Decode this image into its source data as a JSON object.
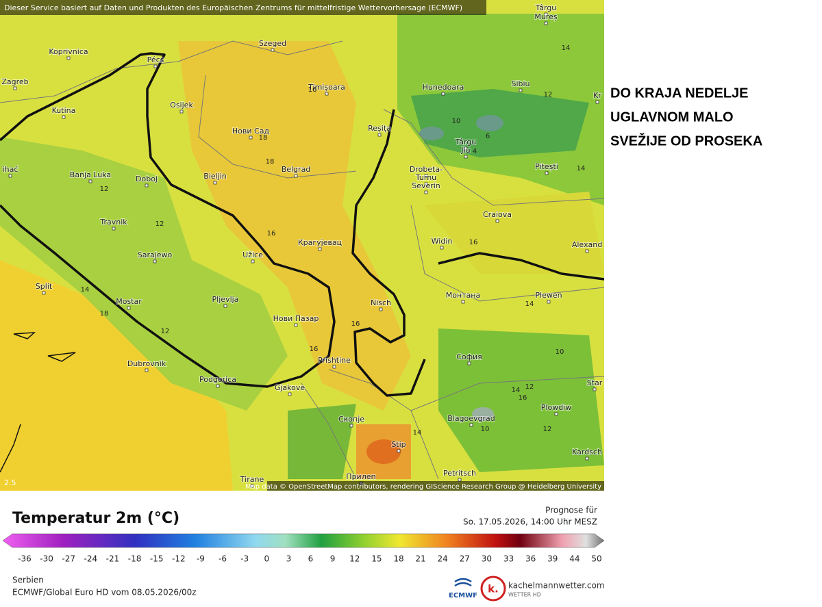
{
  "header": {
    "service_note": "Dieser Service basiert auf Daten und Produkten des Europäischen Zentrums für mittelfristige Wettervorhersage (ECMWF)",
    "attribution": "Map data © OpenStreetMap contributors, rendering GIScience Research Group @ Heidelberg University",
    "zoom_label": "2.5"
  },
  "annotation": {
    "lines": [
      "DO KRAJA NEDELJE",
      "UGLAVNOM MALO",
      "SVEŽIJE OD PROSEKA"
    ]
  },
  "map": {
    "cities": [
      "Târgu",
      "Mureș",
      "Koprivnica",
      "Szeged",
      "Pécs",
      "Zagreb",
      "Osijek",
      "Timișoara",
      "Hunedoara",
      "Sibiu",
      "Kr",
      "Kutina",
      "Нови Сад",
      "Reșița",
      "Târgu",
      "Jiu",
      "ihać",
      "Pitești",
      "Banja Luka",
      "Doboj",
      "Bieljin",
      "Belgrad",
      "Drobeta-",
      "Turnu",
      "Severin",
      "Craiova",
      "Travnik",
      "Sarajewo",
      "Užice",
      "Крагујевац",
      "Widin",
      "Alexand",
      "Split",
      "Mostar",
      "Pljevlja",
      "Nisch",
      "Монтана",
      "Plewen",
      "Нови Пазар",
      "Prishtine",
      "София",
      "Dubrovnik",
      "Podgorica",
      "Gjakove",
      "Star",
      "Скопје",
      "Blagoevgrad",
      "Plowdiw",
      "Stip",
      "Kardsch",
      "Tirane",
      "Прилеп",
      "Petritsch"
    ],
    "contour_labels": [
      14,
      16,
      12,
      10,
      18,
      6,
      4,
      18,
      14,
      12,
      12,
      16,
      16,
      14,
      14,
      18,
      16,
      12,
      16,
      10,
      12,
      14,
      16,
      14,
      10,
      12
    ]
  },
  "legend": {
    "title": "Temperatur 2m (°C)",
    "forecast_label": "Prognose für",
    "forecast_time": "So. 17.05.2026, 14:00 Uhr MESZ",
    "ticks": [
      -36,
      -30,
      -27,
      -24,
      -21,
      -18,
      -15,
      -12,
      -9,
      -6,
      -3,
      0,
      3,
      6,
      9,
      12,
      15,
      18,
      21,
      24,
      27,
      30,
      33,
      36,
      39,
      44,
      50
    ]
  },
  "footer": {
    "region": "Serbien",
    "model_run": "ECMWF/Global Euro HD vom 08.05.2026/00z",
    "ecmwf_logo": "ECMWF",
    "brand_letter": "k.",
    "brand_site": "kachelmannwetter.com",
    "brand_sub": "WETTER HD"
  }
}
